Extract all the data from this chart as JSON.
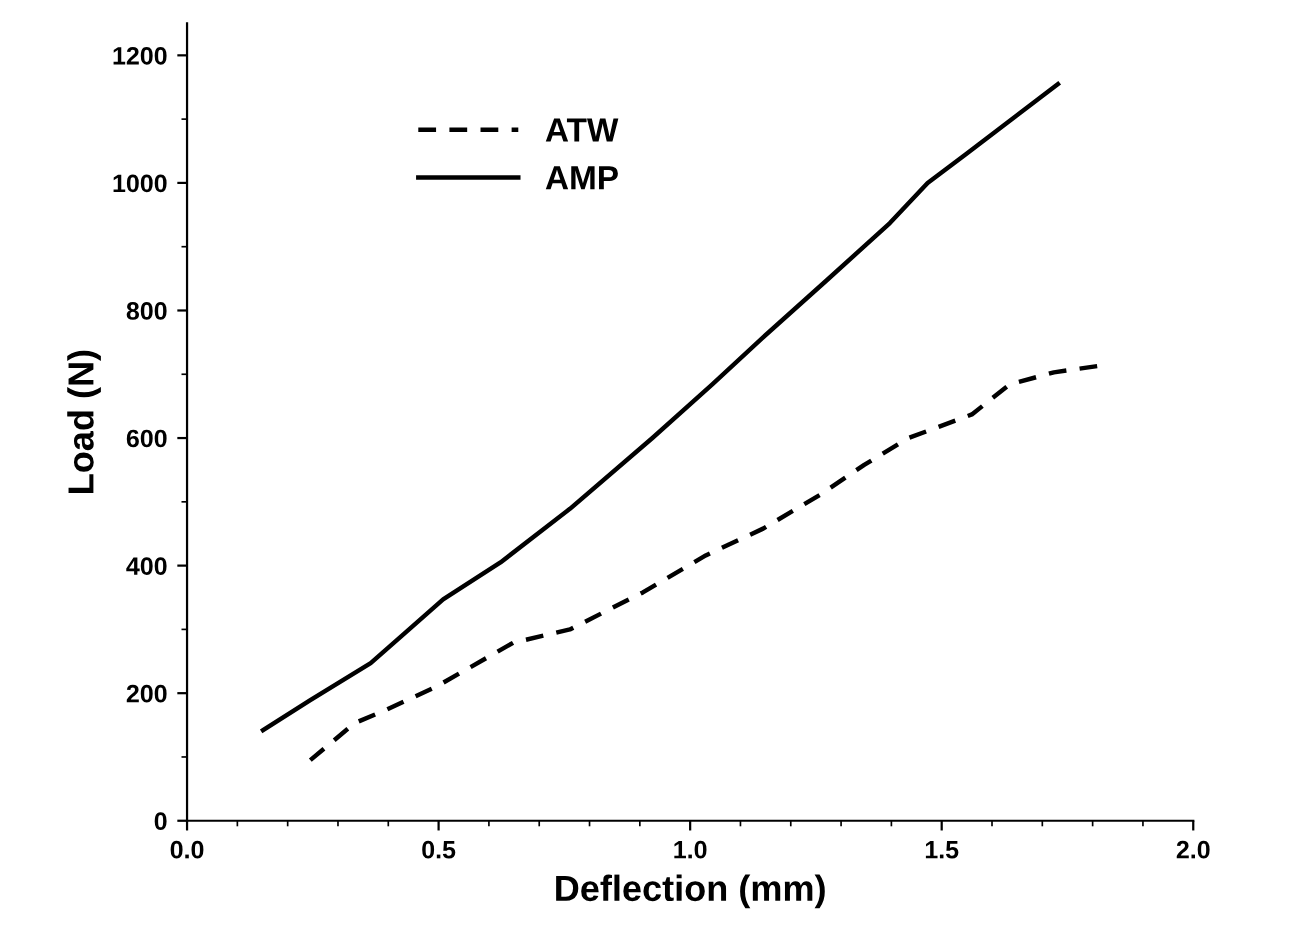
{
  "chart_data": {
    "type": "line",
    "xlabel": "Deflection (mm)",
    "ylabel": "Load (N)",
    "xlim": [
      0,
      2
    ],
    "ylim": [
      0,
      1250
    ],
    "xticks": [
      {
        "value": 0,
        "label": "0.0"
      },
      0.5,
      {
        "value": 1,
        "label": "1.0"
      },
      1.5,
      {
        "value": 2,
        "label": "2.0"
      }
    ],
    "yticks": [
      0,
      200,
      400,
      600,
      800,
      1000,
      1200
    ],
    "grid": false,
    "legend": "top left",
    "marker": "none",
    "series": [
      {
        "name": "ATW",
        "color": "#000000",
        "line_style": "dashed",
        "x": [
          0.245,
          0.333,
          0.396,
          0.497,
          0.648,
          0.761,
          0.906,
          1.031,
          1.145,
          1.258,
          1.346,
          1.434,
          1.56,
          1.635,
          1.723,
          1.811
        ],
        "values": [
          95,
          153,
          174,
          211,
          279,
          300,
          358,
          416,
          458,
          511,
          558,
          600,
          637,
          684,
          703,
          713
        ]
      },
      {
        "name": "AMP",
        "color": "#000000",
        "line_style": "solid",
        "x": [
          0.151,
          0.245,
          0.365,
          0.434,
          0.509,
          0.623,
          0.761,
          0.925,
          1.044,
          1.145,
          1.271,
          1.397,
          1.472,
          1.548,
          1.731
        ],
        "values": [
          142,
          189,
          247,
          295,
          347,
          405,
          489,
          600,
          684,
          758,
          847,
          937,
          1000,
          1045,
          1155
        ]
      }
    ]
  }
}
